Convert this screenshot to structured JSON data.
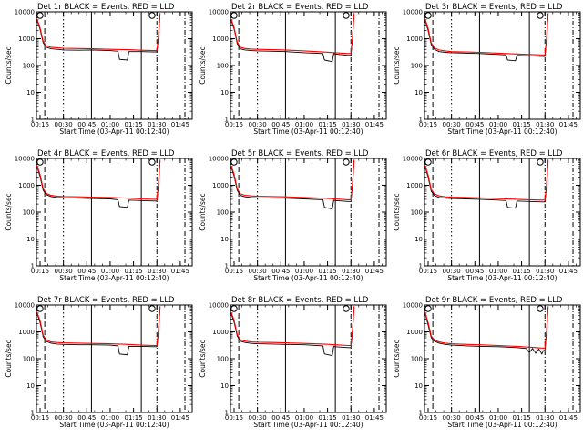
{
  "chart_data": {
    "type": "line",
    "layout": {
      "rows": 3,
      "cols": 3
    },
    "yscale": "log",
    "ylim": [
      1,
      10000
    ],
    "yticks": [
      "1",
      "10",
      "100",
      "1000",
      "10000"
    ],
    "ylabel": "Counts/sec",
    "xlabel": "Start Time (03-Apr-11 00:12:40)",
    "xlim": [
      "00:12:40",
      "01:52:40"
    ],
    "xticks": [
      "00:15",
      "00:30",
      "00:45",
      "01:00",
      "01:15",
      "01:30",
      "01:45"
    ],
    "markers": [
      {
        "style": "dashed",
        "time": "00:18"
      },
      {
        "style": "dotted",
        "time": "00:30"
      },
      {
        "style": "solid",
        "time": "00:48"
      },
      {
        "style": "solid",
        "time": "01:20"
      },
      {
        "style": "dash-dot",
        "time": "01:30"
      },
      {
        "style": "dash-dot",
        "time": "01:48"
      }
    ],
    "series_colors": {
      "events": "#000000",
      "lld": "#ff0000"
    },
    "panels": [
      {
        "title": "Det 1r BLACK = Events, RED = LLD",
        "events": {
          "x": [
            "00:13",
            "00:15",
            "00:17",
            "00:19",
            "00:22",
            "00:26",
            "00:30",
            "00:40",
            "00:48",
            "01:00",
            "01:05",
            "01:06",
            "01:11",
            "01:12",
            "01:20",
            "01:28",
            "01:30",
            "01:31",
            "01:32"
          ],
          "y": [
            5000,
            2200,
            700,
            480,
            420,
            400,
            380,
            370,
            380,
            360,
            340,
            170,
            160,
            330,
            330,
            320,
            320,
            1000,
            8000
          ]
        },
        "lld": {
          "x": [
            "00:13",
            "00:15",
            "00:17",
            "00:19",
            "00:22",
            "00:26",
            "00:30",
            "00:40",
            "00:48",
            "01:00",
            "01:12",
            "01:20",
            "01:28",
            "01:30",
            "01:31",
            "01:32"
          ],
          "y": [
            5500,
            2500,
            800,
            540,
            480,
            460,
            440,
            430,
            420,
            400,
            390,
            370,
            360,
            360,
            1200,
            9000
          ]
        }
      },
      {
        "title": "Det 2r BLACK = Events, RED = LLD",
        "events": {
          "x": [
            "00:13",
            "00:15",
            "00:17",
            "00:19",
            "00:22",
            "00:26",
            "00:30",
            "00:40",
            "00:48",
            "01:00",
            "01:12",
            "01:13",
            "01:18",
            "01:19",
            "01:20",
            "01:28",
            "01:30",
            "01:31",
            "01:32"
          ],
          "y": [
            5000,
            2300,
            650,
            420,
            380,
            360,
            350,
            340,
            330,
            300,
            280,
            160,
            140,
            280,
            270,
            240,
            240,
            900,
            8000
          ]
        },
        "lld": {
          "x": [
            "00:13",
            "00:15",
            "00:17",
            "00:19",
            "00:22",
            "00:26",
            "00:30",
            "00:40",
            "00:48",
            "01:00",
            "01:12",
            "01:20",
            "01:28",
            "01:30",
            "01:31",
            "01:32"
          ],
          "y": [
            5500,
            2600,
            750,
            480,
            430,
            410,
            400,
            390,
            380,
            350,
            320,
            300,
            280,
            280,
            1100,
            9000
          ]
        }
      },
      {
        "title": "Det 3r BLACK = Events, RED = LLD",
        "events": {
          "x": [
            "00:13",
            "00:15",
            "00:17",
            "00:19",
            "00:22",
            "00:26",
            "00:30",
            "00:40",
            "00:48",
            "01:00",
            "01:05",
            "01:06",
            "01:11",
            "01:12",
            "01:20",
            "01:28",
            "01:30",
            "01:31",
            "01:32"
          ],
          "y": [
            5000,
            2000,
            600,
            400,
            330,
            310,
            300,
            290,
            280,
            260,
            250,
            160,
            150,
            240,
            230,
            220,
            220,
            900,
            8000
          ]
        },
        "lld": {
          "x": [
            "00:13",
            "00:15",
            "00:17",
            "00:19",
            "00:22",
            "00:26",
            "00:30",
            "00:40",
            "00:48",
            "01:00",
            "01:12",
            "01:20",
            "01:28",
            "01:30",
            "01:31",
            "01:32"
          ],
          "y": [
            5500,
            2400,
            700,
            450,
            380,
            350,
            330,
            320,
            310,
            290,
            270,
            260,
            250,
            250,
            1100,
            9000
          ]
        }
      },
      {
        "title": "Det 4r BLACK = Events, RED = LLD",
        "events": {
          "x": [
            "00:13",
            "00:15",
            "00:17",
            "00:19",
            "00:22",
            "00:26",
            "00:30",
            "00:40",
            "00:48",
            "01:00",
            "01:05",
            "01:06",
            "01:11",
            "01:12",
            "01:20",
            "01:28",
            "01:30",
            "01:31",
            "01:32"
          ],
          "y": [
            5000,
            2100,
            650,
            450,
            380,
            350,
            340,
            330,
            320,
            310,
            290,
            160,
            150,
            280,
            270,
            260,
            260,
            900,
            8000
          ]
        },
        "lld": {
          "x": [
            "00:13",
            "00:15",
            "00:17",
            "00:19",
            "00:22",
            "00:26",
            "00:30",
            "00:40",
            "00:48",
            "01:00",
            "01:12",
            "01:20",
            "01:28",
            "01:30",
            "01:31",
            "01:32"
          ],
          "y": [
            5500,
            2500,
            750,
            500,
            420,
            390,
            380,
            370,
            360,
            350,
            330,
            310,
            300,
            300,
            1100,
            9000
          ]
        }
      },
      {
        "title": "Det 5r BLACK = Events, RED = LLD",
        "events": {
          "x": [
            "00:13",
            "00:15",
            "00:17",
            "00:19",
            "00:22",
            "00:26",
            "00:30",
            "00:40",
            "00:48",
            "01:00",
            "01:12",
            "01:13",
            "01:18",
            "01:19",
            "01:20",
            "01:28",
            "01:30",
            "01:31",
            "01:32"
          ],
          "y": [
            5000,
            2200,
            650,
            420,
            370,
            350,
            340,
            330,
            330,
            310,
            290,
            150,
            130,
            280,
            270,
            250,
            250,
            900,
            8000
          ]
        },
        "lld": {
          "x": [
            "00:13",
            "00:15",
            "00:17",
            "00:19",
            "00:22",
            "00:26",
            "00:30",
            "00:40",
            "00:48",
            "01:00",
            "01:12",
            "01:20",
            "01:28",
            "01:30",
            "01:31",
            "01:32"
          ],
          "y": [
            5500,
            2600,
            750,
            480,
            420,
            400,
            390,
            380,
            370,
            350,
            330,
            310,
            290,
            290,
            1100,
            9000
          ]
        }
      },
      {
        "title": "Det 6r BLACK = Events, RED = LLD",
        "events": {
          "x": [
            "00:13",
            "00:15",
            "00:17",
            "00:19",
            "00:22",
            "00:26",
            "00:30",
            "00:40",
            "00:48",
            "01:00",
            "01:05",
            "01:06",
            "01:11",
            "01:12",
            "01:20",
            "01:28",
            "01:30",
            "01:31",
            "01:32"
          ],
          "y": [
            5000,
            2000,
            600,
            420,
            350,
            330,
            320,
            310,
            300,
            280,
            270,
            150,
            140,
            260,
            250,
            240,
            240,
            900,
            8000
          ]
        },
        "lld": {
          "x": [
            "00:13",
            "00:15",
            "00:17",
            "00:19",
            "00:22",
            "00:26",
            "00:30",
            "00:40",
            "00:48",
            "01:00",
            "01:12",
            "01:20",
            "01:28",
            "01:30",
            "01:31",
            "01:32"
          ],
          "y": [
            5500,
            2400,
            700,
            480,
            400,
            370,
            360,
            350,
            340,
            320,
            300,
            290,
            280,
            280,
            1100,
            9000
          ]
        }
      },
      {
        "title": "Det 7r BLACK = Events, RED = LLD",
        "events": {
          "x": [
            "00:13",
            "00:15",
            "00:17",
            "00:19",
            "00:22",
            "00:26",
            "00:30",
            "00:40",
            "00:48",
            "01:00",
            "01:05",
            "01:06",
            "01:11",
            "01:12",
            "01:20",
            "01:28",
            "01:30",
            "01:31",
            "01:32"
          ],
          "y": [
            5000,
            2200,
            650,
            440,
            380,
            350,
            340,
            330,
            330,
            320,
            300,
            150,
            140,
            290,
            290,
            280,
            280,
            900,
            8000
          ]
        },
        "lld": {
          "x": [
            "00:13",
            "00:15",
            "00:17",
            "00:19",
            "00:22",
            "00:26",
            "00:30",
            "00:40",
            "00:48",
            "01:00",
            "01:12",
            "01:20",
            "01:28",
            "01:30",
            "01:31",
            "01:32"
          ],
          "y": [
            5500,
            2600,
            750,
            500,
            420,
            400,
            390,
            380,
            370,
            360,
            340,
            320,
            310,
            310,
            1100,
            9000
          ]
        }
      },
      {
        "title": "Det 8r BLACK = Events, RED = LLD",
        "events": {
          "x": [
            "00:13",
            "00:15",
            "00:17",
            "00:19",
            "00:22",
            "00:26",
            "00:30",
            "00:40",
            "00:48",
            "01:00",
            "01:12",
            "01:13",
            "01:18",
            "01:19",
            "01:20",
            "01:28",
            "01:30",
            "01:31",
            "01:32"
          ],
          "y": [
            5000,
            2300,
            700,
            450,
            400,
            370,
            360,
            350,
            340,
            330,
            300,
            150,
            130,
            290,
            280,
            260,
            260,
            900,
            8000
          ]
        },
        "lld": {
          "x": [
            "00:13",
            "00:15",
            "00:17",
            "00:19",
            "00:22",
            "00:26",
            "00:30",
            "00:40",
            "00:48",
            "01:00",
            "01:12",
            "01:20",
            "01:28",
            "01:30",
            "01:31",
            "01:32"
          ],
          "y": [
            5500,
            2700,
            800,
            510,
            450,
            420,
            410,
            400,
            390,
            370,
            350,
            330,
            310,
            310,
            1100,
            9000
          ]
        }
      },
      {
        "title": "Det 9r BLACK = Events, RED = LLD",
        "events": {
          "x": [
            "00:13",
            "00:15",
            "00:17",
            "00:19",
            "00:22",
            "00:26",
            "00:30",
            "00:40",
            "00:48",
            "01:00",
            "01:12",
            "01:18",
            "01:20",
            "01:22",
            "01:24",
            "01:26",
            "01:28",
            "01:29",
            "01:30",
            "01:31",
            "01:32"
          ],
          "y": [
            5000,
            1800,
            600,
            450,
            380,
            340,
            320,
            300,
            290,
            280,
            260,
            240,
            170,
            240,
            160,
            230,
            150,
            200,
            210,
            900,
            8000
          ]
        },
        "lld": {
          "x": [
            "00:13",
            "00:15",
            "00:17",
            "00:19",
            "00:22",
            "00:26",
            "00:30",
            "00:40",
            "00:48",
            "01:00",
            "01:12",
            "01:20",
            "01:28",
            "01:30",
            "01:31",
            "01:32"
          ],
          "y": [
            5500,
            2200,
            700,
            500,
            420,
            380,
            360,
            340,
            330,
            310,
            290,
            270,
            250,
            250,
            1100,
            9000
          ]
        }
      }
    ]
  }
}
